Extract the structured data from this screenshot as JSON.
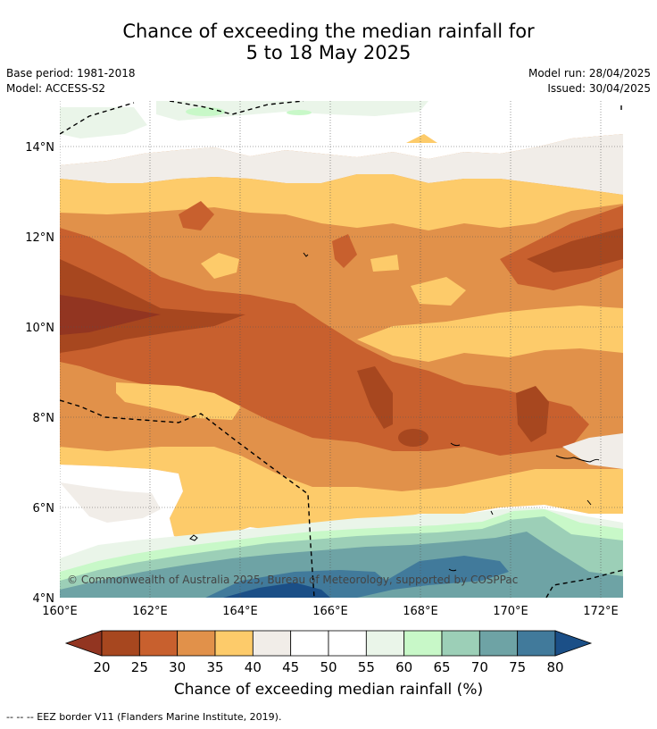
{
  "title_line1": "Chance of exceeding the median rainfall for",
  "title_line2": "5 to 18 May 2025",
  "base_period": "Base period: 1981-2018",
  "model": "Model: ACCESS-S2",
  "model_run": "Model run: 28/04/2025",
  "issued": "Issued: 30/04/2025",
  "copyright": "© Commonwealth of Australia 2025, Bureau of Meteorology, supported by COSPPac",
  "lat_labels": [
    "4°N",
    "6°N",
    "8°N",
    "10°N",
    "12°N",
    "14°N"
  ],
  "lon_labels": [
    "160°E",
    "162°E",
    "164°E",
    "166°E",
    "168°E",
    "170°E",
    "172°E"
  ],
  "colorbar": {
    "ticks": [
      "20",
      "25",
      "30",
      "35",
      "40",
      "45",
      "50",
      "55",
      "60",
      "65",
      "70",
      "75",
      "80"
    ],
    "colors": [
      "#a7471f",
      "#c8602e",
      "#e1914a",
      "#fdcb6a",
      "#f1ede8",
      "#ffffff",
      "#ffffff",
      "#eaf5e9",
      "#c8f8c8",
      "#9ccfb7",
      "#6ea3a5",
      "#417a9b"
    ],
    "under_color": "#923521",
    "over_color": "#1b4f87",
    "label": "Chance of exceeding median rainfall (%)"
  },
  "footnote": "--  --  -- EEZ border V11 (Flanders Marine Institute, 2019)."
}
